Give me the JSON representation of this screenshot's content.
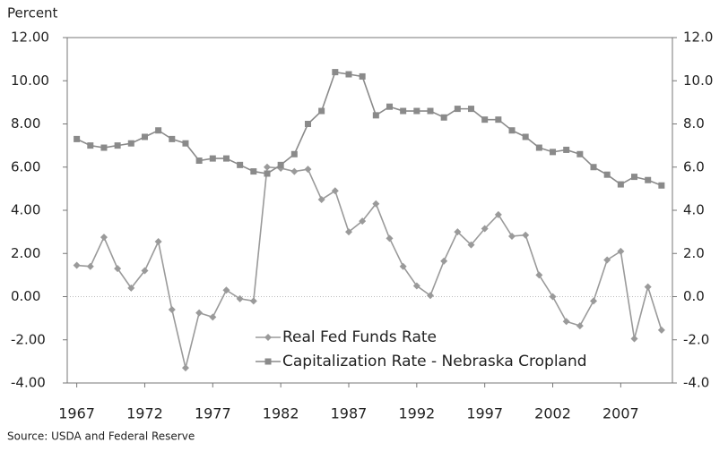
{
  "chart_data": {
    "type": "line",
    "y_label": "Percent",
    "source": "Source: USDA and Federal Reserve",
    "x": [
      1967,
      1968,
      1969,
      1970,
      1971,
      1972,
      1973,
      1974,
      1975,
      1976,
      1977,
      1978,
      1979,
      1980,
      1981,
      1982,
      1983,
      1984,
      1985,
      1986,
      1987,
      1988,
      1989,
      1990,
      1991,
      1992,
      1993,
      1994,
      1995,
      1996,
      1997,
      1998,
      1999,
      2000,
      2001,
      2002,
      2003,
      2004,
      2005,
      2006,
      2007,
      2008,
      2009,
      2010
    ],
    "series": [
      {
        "name": "Real Fed Funds Rate",
        "color": "#9a9a9a",
        "marker": "diamond",
        "values": [
          1.45,
          1.4,
          2.75,
          1.3,
          0.4,
          1.2,
          2.55,
          -0.6,
          -3.3,
          -0.75,
          -0.95,
          0.3,
          -0.1,
          -0.2,
          6.0,
          5.95,
          5.8,
          5.9,
          4.5,
          4.9,
          3.0,
          3.5,
          4.3,
          2.7,
          1.4,
          0.5,
          0.05,
          1.65,
          3.0,
          2.4,
          3.15,
          3.8,
          2.8,
          2.85,
          1.0,
          0.0,
          -1.15,
          -1.35,
          -0.2,
          1.7,
          2.1,
          -1.95,
          0.45,
          -1.55
        ]
      },
      {
        "name": "Capitalization Rate - Nebraska Cropland",
        "color": "#8a8a8a",
        "marker": "square",
        "values": [
          7.3,
          7.0,
          6.9,
          7.0,
          7.1,
          7.4,
          7.7,
          7.3,
          7.1,
          6.3,
          6.4,
          6.4,
          6.1,
          5.8,
          5.7,
          6.1,
          6.6,
          8.0,
          8.6,
          10.4,
          10.3,
          10.2,
          8.4,
          8.8,
          8.6,
          8.6,
          8.6,
          8.3,
          8.7,
          8.7,
          8.2,
          8.2,
          7.7,
          7.4,
          6.9,
          6.7,
          6.8,
          6.6,
          6.0,
          5.65,
          5.2,
          5.55,
          5.4,
          5.15
        ]
      }
    ],
    "xlim": [
      1966.3,
      2010.8
    ],
    "xticks": [
      1967,
      1972,
      1977,
      1982,
      1987,
      1992,
      1997,
      2002,
      2007
    ],
    "ylim": [
      -4,
      12
    ],
    "yticks": [
      {
        "value": 12,
        "label": "12.00"
      },
      {
        "value": 10,
        "label": "10.00"
      },
      {
        "value": 8,
        "label": "8.00"
      },
      {
        "value": 6,
        "label": "6.00"
      },
      {
        "value": 4,
        "label": "4.00"
      },
      {
        "value": 2,
        "label": "2.00"
      },
      {
        "value": 0,
        "label": "0.00"
      },
      {
        "value": -2,
        "label": "-2.00"
      },
      {
        "value": -4,
        "label": "-4.00"
      }
    ],
    "y2lim": [
      -4,
      12
    ],
    "y2ticks": [
      {
        "value": 12,
        "label": "12.0"
      },
      {
        "value": 10,
        "label": "10.0"
      },
      {
        "value": 8,
        "label": "8.0"
      },
      {
        "value": 6,
        "label": "6.0"
      },
      {
        "value": 4,
        "label": "4.0"
      },
      {
        "value": 2,
        "label": "2.0"
      },
      {
        "value": 0,
        "label": "0.0"
      },
      {
        "value": -2,
        "label": "-2.0"
      },
      {
        "value": -4,
        "label": "-4.0"
      }
    ],
    "legend": "lower center"
  }
}
